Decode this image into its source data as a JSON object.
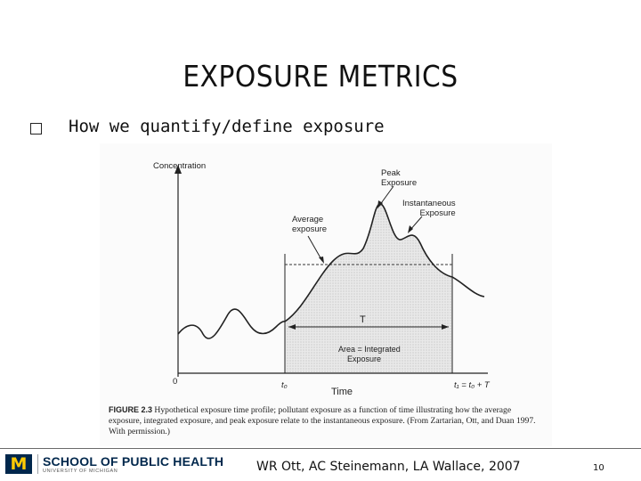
{
  "slide": {
    "title": "EXPOSURE METRICS",
    "bullet": "How we quantify/define exposure"
  },
  "figure": {
    "y_axis_label": "Concentration",
    "x_axis_label": "Time",
    "origin_label": "0",
    "t0_label": "t₀",
    "t1_label": "t₁ = t₀ + T",
    "peak_label": [
      "Peak",
      "Exposure"
    ],
    "instantaneous_label": [
      "Instantaneous",
      "Exposure"
    ],
    "average_label": [
      "Average",
      "exposure"
    ],
    "interval_label": "T",
    "area_label": [
      "Area = Integrated",
      "Exposure"
    ],
    "caption_lead": "FIGURE 2.3",
    "caption_body": "Hypothetical exposure time profile; pollutant exposure as a function of time illustrating how the average exposure, integrated exposure, and peak exposure relate to the instantaneous exposure. (From Zartarian, Ott, and Duan 1997. With permission.)"
  },
  "footer": {
    "logo_mark": "M",
    "logo_main": "SCHOOL OF PUBLIC HEALTH",
    "logo_sub": "UNIVERSITY OF MICHIGAN",
    "credits": "WR Ott, AC Steinemann, LA Wallace, 2007",
    "page_number": "10"
  },
  "colors": {
    "brand_navy": "#00274c",
    "brand_maize": "#ffcb05"
  }
}
